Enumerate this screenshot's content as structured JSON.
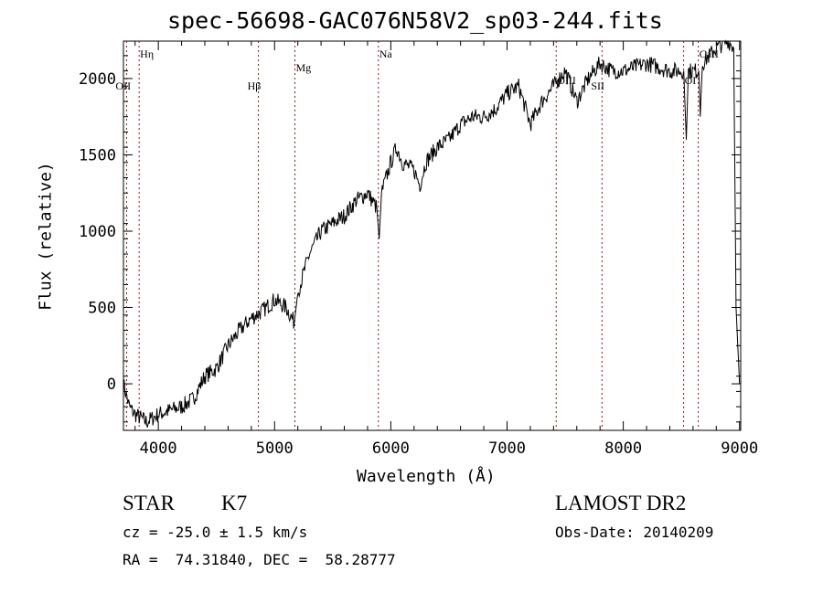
{
  "chart_data": {
    "type": "line",
    "title": "spec-56698-GAC076N58V2_sp03-244.fits",
    "xlabel": "Wavelength (Å)",
    "ylabel": "Flux (relative)",
    "xlim": [
      3700,
      9010
    ],
    "ylim": [
      -305,
      2245
    ],
    "xticks": [
      4000,
      5000,
      6000,
      7000,
      8000,
      9000
    ],
    "yticks": [
      0,
      500,
      1000,
      1500,
      2000
    ],
    "grid": false,
    "line_color": "#000000",
    "marker_color": "#8b1a1a",
    "series": [
      {
        "name": "spectrum",
        "x": [
          3700,
          3750,
          3800,
          3900,
          4000,
          4200,
          4300,
          4400,
          4500,
          4600,
          4700,
          4800,
          4900,
          5000,
          5100,
          5170,
          5200,
          5300,
          5400,
          5500,
          5600,
          5700,
          5800,
          5880,
          5900,
          5920,
          6000,
          6050,
          6100,
          6200,
          6250,
          6300,
          6400,
          6500,
          6600,
          6700,
          6800,
          6900,
          7000,
          7100,
          7200,
          7300,
          7400,
          7500,
          7600,
          7700,
          7800,
          7900,
          8000,
          8200,
          8400,
          8520,
          8542,
          8560,
          8650,
          8662,
          8680,
          8800,
          8900,
          8950,
          8970,
          9000
        ],
        "y": [
          0,
          -150,
          -200,
          -250,
          -200,
          -150,
          -100,
          50,
          100,
          250,
          350,
          430,
          480,
          550,
          500,
          400,
          600,
          850,
          1000,
          1050,
          1100,
          1200,
          1250,
          1150,
          950,
          1250,
          1450,
          1550,
          1450,
          1400,
          1300,
          1450,
          1550,
          1600,
          1700,
          1750,
          1750,
          1800,
          1900,
          1950,
          1700,
          1850,
          1950,
          2050,
          1850,
          2000,
          2100,
          2050,
          2050,
          2100,
          2050,
          2050,
          1600,
          2050,
          2050,
          1750,
          2100,
          2200,
          2250,
          2200,
          500,
          0
        ]
      }
    ],
    "line_markers": [
      {
        "label": "OII",
        "x": 3727,
        "row": 2
      },
      {
        "label": "Hη",
        "x": 3835,
        "row": 0
      },
      {
        "label": "Hβ",
        "x": 4861,
        "row": 2
      },
      {
        "label": "Mg",
        "x": 5175,
        "row": 1
      },
      {
        "label": "Na",
        "x": 5893,
        "row": 0
      },
      {
        "label": "OIII",
        "x": 7423,
        "row": 1
      },
      {
        "label": "SII",
        "x": 7817,
        "row": 2
      },
      {
        "label": "OI",
        "x": 8519,
        "row": 1
      },
      {
        "label": "CaII",
        "x": 8645,
        "row": 0
      }
    ]
  },
  "info": {
    "object_class": "STAR",
    "subclass": "K7",
    "cz": "cz = -25.0 ± 1.5 km/s",
    "coords": "RA =  74.31840, DEC =  58.28777",
    "survey": "LAMOST DR2",
    "obs_date": "Obs-Date: 20140209"
  }
}
